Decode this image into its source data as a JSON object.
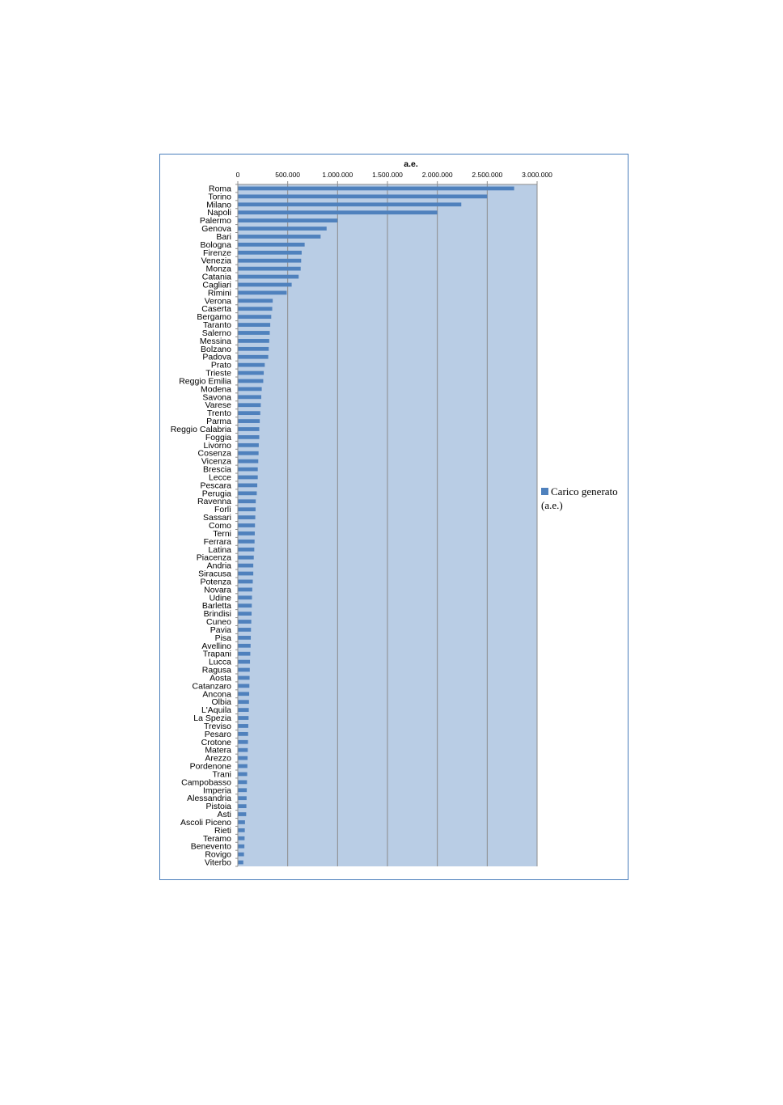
{
  "chart_data": {
    "type": "bar",
    "orientation": "horizontal",
    "title": "a.e.",
    "xlabel": "",
    "ylabel": "",
    "xlim": [
      0,
      3000000
    ],
    "x_ticks": [
      "0",
      "500.000",
      "1.000.000",
      "1.500.000",
      "2.000.000",
      "2.500.000",
      "3.000.000"
    ],
    "x_tick_values": [
      0,
      500000,
      1000000,
      1500000,
      2000000,
      2500000,
      3000000
    ],
    "x_axis_position": "top",
    "grid": true,
    "plot_background": "#b9cde5",
    "bar_color": "#4f81bd",
    "legend_position": "right",
    "series": [
      {
        "name": "Carico generato (a.e.)"
      }
    ],
    "categories": [
      "Roma",
      "Torino",
      "Milano",
      "Napoli",
      "Palermo",
      "Genova",
      "Bari",
      "Bologna",
      "Firenze",
      "Venezia",
      "Monza",
      "Catania",
      "Cagliari",
      "Rimini",
      "Verona",
      "Caserta",
      "Bergamo",
      "Taranto",
      "Salerno",
      "Messina",
      "Bolzano",
      "Padova",
      "Prato",
      "Trieste",
      "Reggio Emilia",
      "Modena",
      "Savona",
      "Varese",
      "Trento",
      "Parma",
      "Reggio Calabria",
      "Foggia",
      "Livorno",
      "Cosenza",
      "Vicenza",
      "Brescia",
      "Lecce",
      "Pescara",
      "Perugia",
      "Ravenna",
      "Forlì",
      "Sassari",
      "Como",
      "Terni",
      "Ferrara",
      "Latina",
      "Piacenza",
      "Andria",
      "Siracusa",
      "Potenza",
      "Novara",
      "Udine",
      "Barletta",
      "Brindisi",
      "Cuneo",
      "Pavia",
      "Pisa",
      "Avellino",
      "Trapani",
      "Lucca",
      "Ragusa",
      "Aosta",
      "Catanzaro",
      "Ancona",
      "Olbia",
      "L'Aquila",
      "La Spezia",
      "Treviso",
      "Pesaro",
      "Crotone",
      "Matera",
      "Arezzo",
      "Pordenone",
      "Trani",
      "Campobasso",
      "Imperia",
      "Alessandria",
      "Pistoia",
      "Asti",
      "Ascoli Piceno",
      "Rieti",
      "Teramo",
      "Benevento",
      "Rovigo",
      "Viterbo"
    ],
    "values": [
      2770000,
      2500000,
      2240000,
      2000000,
      1000000,
      890000,
      830000,
      670000,
      640000,
      635000,
      630000,
      610000,
      540000,
      490000,
      350000,
      345000,
      335000,
      325000,
      320000,
      315000,
      310000,
      305000,
      270000,
      260000,
      255000,
      240000,
      235000,
      230000,
      225000,
      220000,
      215000,
      215000,
      210000,
      208000,
      205000,
      200000,
      200000,
      195000,
      190000,
      180000,
      178000,
      175000,
      172000,
      170000,
      168000,
      165000,
      160000,
      155000,
      155000,
      150000,
      145000,
      142000,
      140000,
      138000,
      135000,
      132000,
      130000,
      128000,
      125000,
      122000,
      120000,
      118000,
      116000,
      114000,
      112000,
      110000,
      108000,
      105000,
      103000,
      102000,
      100000,
      98000,
      96000,
      94000,
      92000,
      90000,
      88000,
      86000,
      84000,
      72000,
      70000,
      68000,
      66000,
      62000,
      55000
    ]
  }
}
